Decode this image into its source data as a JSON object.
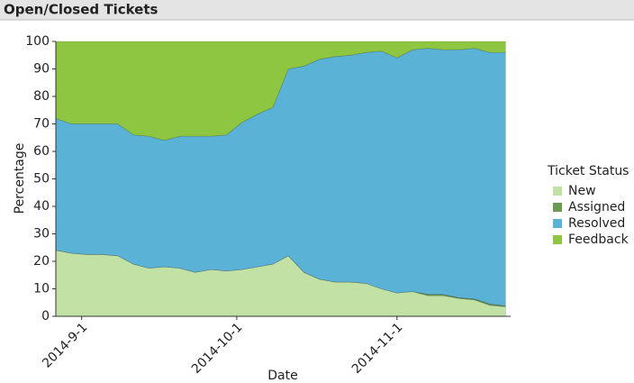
{
  "header": {
    "title": "Open/Closed Tickets"
  },
  "chart_data": {
    "type": "stacked-area",
    "x_label": "Date",
    "y_label": "Percentage",
    "legend_title": "Ticket Status",
    "x": [
      "2014-8-27",
      "2014-8-30",
      "2014-9-2",
      "2014-9-5",
      "2014-9-8",
      "2014-9-11",
      "2014-9-14",
      "2014-9-17",
      "2014-9-20",
      "2014-9-23",
      "2014-9-26",
      "2014-9-29",
      "2014-10-2",
      "2014-10-5",
      "2014-10-8",
      "2014-10-11",
      "2014-10-14",
      "2014-10-17",
      "2014-10-20",
      "2014-10-23",
      "2014-10-26",
      "2014-10-29",
      "2014-11-1",
      "2014-11-4",
      "2014-11-7",
      "2014-11-10",
      "2014-11-13",
      "2014-11-16",
      "2014-11-19",
      "2014-11-22"
    ],
    "series": [
      {
        "name": "New",
        "color": "#c2e1a4",
        "values": [
          24,
          23,
          22.5,
          22.5,
          22,
          19,
          17.5,
          18,
          17.5,
          16,
          17,
          16.5,
          17,
          18,
          19,
          22,
          16,
          13.5,
          12.5,
          12.5,
          12,
          10,
          8.5,
          9,
          7.5,
          7.5,
          6.5,
          6,
          4,
          3.5
        ]
      },
      {
        "name": "Assigned",
        "color": "#6b9a52",
        "values": [
          0,
          0,
          0,
          0,
          0,
          0,
          0,
          0,
          0,
          0,
          0,
          0,
          0,
          0,
          0,
          0,
          0,
          0,
          0,
          0,
          0,
          0,
          0,
          0,
          0.5,
          0.5,
          0.3,
          0.3,
          0.5,
          0.3
        ]
      },
      {
        "name": "Resolved",
        "color": "#5ab3d6",
        "values": [
          48,
          47,
          47.5,
          47.5,
          48,
          47,
          48,
          46,
          48,
          49.5,
          48.5,
          49.5,
          53.5,
          55.5,
          57,
          68,
          75,
          80,
          82,
          82.5,
          84,
          86.5,
          85.5,
          88,
          89.5,
          89,
          90.2,
          91.2,
          91.5,
          92.2
        ]
      },
      {
        "name": "Feedback",
        "color": "#8fc641",
        "values": [
          28,
          30,
          30,
          30,
          30,
          34,
          34.5,
          36,
          34.5,
          34.5,
          34.5,
          34,
          29.5,
          26.5,
          24,
          10,
          9,
          6.5,
          5.5,
          5,
          4,
          3.5,
          6,
          3,
          2.5,
          3,
          3,
          2.5,
          4,
          4
        ]
      }
    ],
    "xlim": [
      "2014-8-27",
      "2014-11-23"
    ],
    "xticks": [
      "2014-9-1",
      "2014-10-1",
      "2014-11-1"
    ],
    "ylim": [
      0,
      100
    ],
    "yticks": [
      0,
      10,
      20,
      30,
      40,
      50,
      60,
      70,
      80,
      90,
      100
    ]
  }
}
